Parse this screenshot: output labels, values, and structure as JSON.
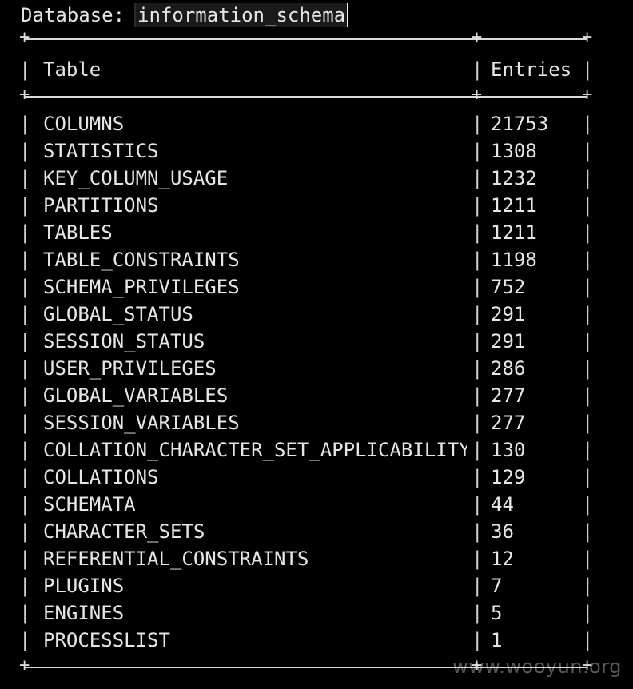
{
  "header": {
    "database_label": "Database:",
    "database_name": "information_schema"
  },
  "table": {
    "headers": {
      "table": "Table",
      "entries": "Entries"
    },
    "rows": [
      {
        "table": "COLUMNS",
        "entries": "21753"
      },
      {
        "table": "STATISTICS",
        "entries": "1308"
      },
      {
        "table": "KEY_COLUMN_USAGE",
        "entries": "1232"
      },
      {
        "table": "PARTITIONS",
        "entries": "1211"
      },
      {
        "table": "TABLES",
        "entries": "1211"
      },
      {
        "table": "TABLE_CONSTRAINTS",
        "entries": "1198"
      },
      {
        "table": "SCHEMA_PRIVILEGES",
        "entries": "752"
      },
      {
        "table": "GLOBAL_STATUS",
        "entries": "291"
      },
      {
        "table": "SESSION_STATUS",
        "entries": "291"
      },
      {
        "table": "USER_PRIVILEGES",
        "entries": "286"
      },
      {
        "table": "GLOBAL_VARIABLES",
        "entries": "277"
      },
      {
        "table": "SESSION_VARIABLES",
        "entries": "277"
      },
      {
        "table": "COLLATION_CHARACTER_SET_APPLICABILITY",
        "entries": "130"
      },
      {
        "table": "COLLATIONS",
        "entries": "129"
      },
      {
        "table": "SCHEMATA",
        "entries": "44"
      },
      {
        "table": "CHARACTER_SETS",
        "entries": "36"
      },
      {
        "table": "REFERENTIAL_CONSTRAINTS",
        "entries": "12"
      },
      {
        "table": "PLUGINS",
        "entries": "7"
      },
      {
        "table": "ENGINES",
        "entries": "5"
      },
      {
        "table": "PROCESSLIST",
        "entries": "1"
      }
    ]
  },
  "watermark": "www.wooyun.org"
}
